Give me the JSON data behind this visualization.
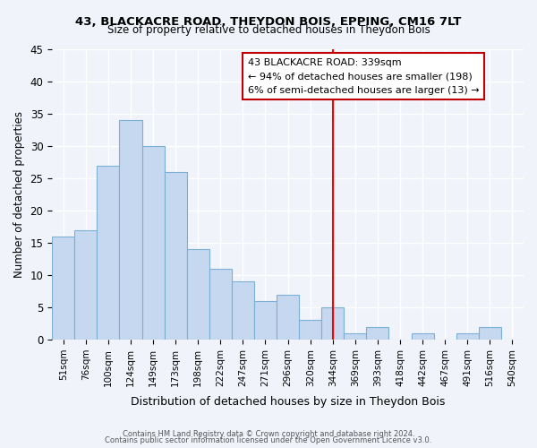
{
  "title1": "43, BLACKACRE ROAD, THEYDON BOIS, EPPING, CM16 7LT",
  "title2": "Size of property relative to detached houses in Theydon Bois",
  "xlabel": "Distribution of detached houses by size in Theydon Bois",
  "ylabel": "Number of detached properties",
  "footer1": "Contains HM Land Registry data © Crown copyright and database right 2024.",
  "footer2": "Contains public sector information licensed under the Open Government Licence v3.0.",
  "bin_labels": [
    "51sqm",
    "76sqm",
    "100sqm",
    "124sqm",
    "149sqm",
    "173sqm",
    "198sqm",
    "222sqm",
    "247sqm",
    "271sqm",
    "296sqm",
    "320sqm",
    "344sqm",
    "369sqm",
    "393sqm",
    "418sqm",
    "442sqm",
    "467sqm",
    "491sqm",
    "516sqm",
    "540sqm"
  ],
  "bar_heights": [
    16,
    17,
    27,
    34,
    30,
    26,
    14,
    11,
    9,
    6,
    7,
    3,
    5,
    1,
    2,
    0,
    1,
    0,
    1,
    2,
    0
  ],
  "bar_color": "#c5d8f0",
  "bar_edge_color": "#7bafd4",
  "vline_x": 12,
  "vline_color": "red",
  "annotation_title": "43 BLACKACRE ROAD: 339sqm",
  "annotation_line1": "← 94% of detached houses are smaller (198)",
  "annotation_line2": "6% of semi-detached houses are larger (13) →",
  "annotation_box_color": "#ffffff",
  "annotation_box_edge": "#c00000",
  "ylim": [
    0,
    45
  ],
  "yticks": [
    0,
    5,
    10,
    15,
    20,
    25,
    30,
    35,
    40,
    45
  ],
  "background_color": "#f0f4fa"
}
